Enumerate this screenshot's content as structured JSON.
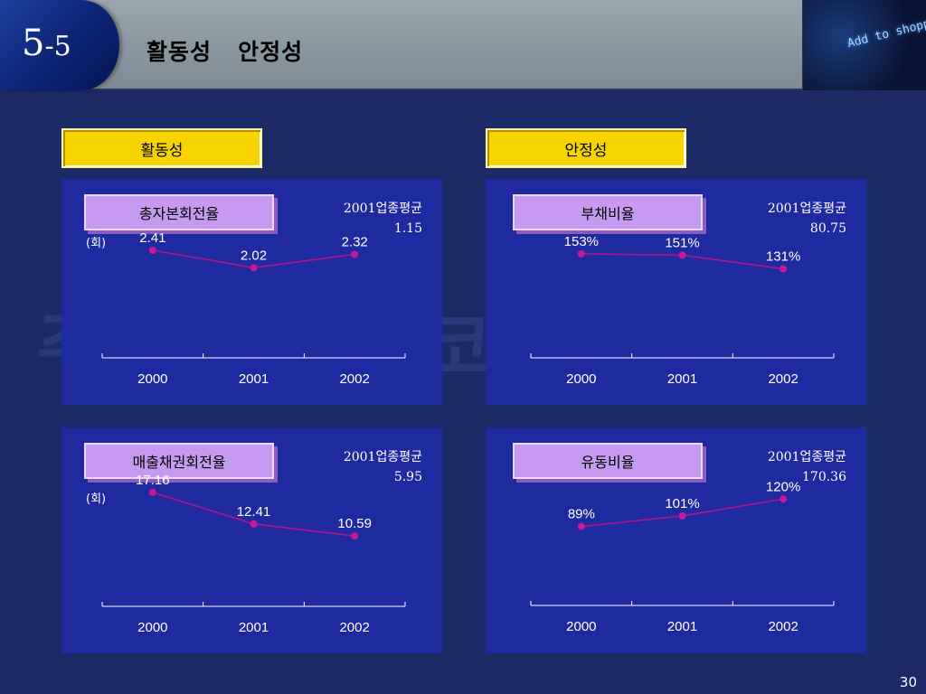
{
  "header": {
    "number": "5",
    "number_suffix": "-5",
    "title": "활동성   안정성",
    "image_text": "Add to shopp"
  },
  "sections": {
    "left_label": "활동성",
    "right_label": "안정성"
  },
  "watermark": "주식회사 썬코리아전자",
  "page_number": "30",
  "colors": {
    "background": "#1c2a66",
    "panel": "#1f2aa0",
    "section_label": "#f7d400",
    "metric_box": "#c79af2",
    "line": "#b0148a",
    "marker": "#c41a9a"
  },
  "panels": [
    {
      "title": "총자본회전율",
      "avg_label": "2001업종평균",
      "avg_value": "1.15",
      "unit": "(회)"
    },
    {
      "title": "부채비율",
      "avg_label": "2001업종평균",
      "avg_value": "80.75",
      "unit": ""
    },
    {
      "title": "매출채권회전율",
      "avg_label": "2001업종평균",
      "avg_value": "5.95",
      "unit": "(회)"
    },
    {
      "title": "유동비율",
      "avg_label": "2001업종평균",
      "avg_value": "170.36",
      "unit": ""
    }
  ],
  "chart_data": [
    {
      "type": "line",
      "categories": [
        "2000",
        "2001",
        "2002"
      ],
      "values": [
        2.41,
        2.02,
        2.32
      ],
      "labels": [
        "2.41",
        "2.02",
        "2.32"
      ],
      "ylim": [
        0,
        3.2
      ],
      "grid": false
    },
    {
      "type": "line",
      "categories": [
        "2000",
        "2001",
        "2002"
      ],
      "values": [
        153,
        151,
        131
      ],
      "labels": [
        "153%",
        "151%",
        "131%"
      ],
      "ylim": [
        0,
        210
      ],
      "grid": false
    },
    {
      "type": "line",
      "categories": [
        "2000",
        "2001",
        "2002"
      ],
      "values": [
        17.16,
        12.41,
        10.59
      ],
      "labels": [
        "17.16",
        "12.41",
        "10.59"
      ],
      "ylim": [
        0,
        21.5
      ],
      "grid": false
    },
    {
      "type": "line",
      "categories": [
        "2000",
        "2001",
        "2002"
      ],
      "values": [
        89,
        101,
        120
      ],
      "labels": [
        "89%",
        "101%",
        "120%"
      ],
      "ylim": [
        0,
        160
      ],
      "grid": false
    }
  ]
}
